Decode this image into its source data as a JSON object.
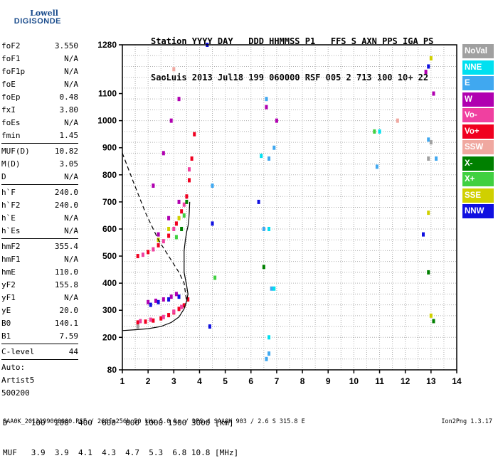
{
  "logo": {
    "line1": "Lowell",
    "line2": "DIGISONDE"
  },
  "header": {
    "line1": "Station YYYY DAY   DDD HHMMSS P1   FFS S AXN PPS IGA PS",
    "line2": "SaoLuis 2013 Jul18 199 060000 RSF 005 2 713 100 10+ 22"
  },
  "params": {
    "group1": [
      {
        "k": "foF2",
        "v": "3.550"
      },
      {
        "k": "foF1",
        "v": "N/A"
      },
      {
        "k": "foF1p",
        "v": "N/A"
      },
      {
        "k": "foE",
        "v": "N/A"
      },
      {
        "k": "foEp",
        "v": "0.48"
      },
      {
        "k": "fxI",
        "v": "3.80"
      },
      {
        "k": "foEs",
        "v": "N/A"
      },
      {
        "k": "fmin",
        "v": "1.45"
      }
    ],
    "group2": [
      {
        "k": "MUF(D)",
        "v": "10.82"
      },
      {
        "k": "M(D)",
        "v": "3.05"
      },
      {
        "k": "D",
        "v": "N/A"
      }
    ],
    "group3": [
      {
        "k": "h`F",
        "v": "240.0"
      },
      {
        "k": "h`F2",
        "v": "240.0"
      },
      {
        "k": "h`E",
        "v": "N/A"
      },
      {
        "k": "h`Es",
        "v": "N/A"
      }
    ],
    "group4": [
      {
        "k": "hmF2",
        "v": "355.4"
      },
      {
        "k": "hmF1",
        "v": "N/A"
      },
      {
        "k": "hmE",
        "v": "110.0"
      },
      {
        "k": "yF2",
        "v": "155.8"
      },
      {
        "k": "yF1",
        "v": "N/A"
      },
      {
        "k": "yE",
        "v": "20.0"
      },
      {
        "k": "B0",
        "v": "140.1"
      },
      {
        "k": "B1",
        "v": "7.59"
      }
    ],
    "clevel": {
      "k": "C-level",
      "v": "44"
    },
    "auto": [
      "Auto:",
      "Artist5",
      "500200"
    ]
  },
  "legend": [
    {
      "label": "NoVal",
      "color": "#a0a0a0"
    },
    {
      "label": "NNE",
      "color": "#00e0f0"
    },
    {
      "label": "E",
      "color": "#40a8f0"
    },
    {
      "label": "W",
      "color": "#b000b0"
    },
    {
      "label": "Vo-",
      "color": "#f040a0"
    },
    {
      "label": "Vo+",
      "color": "#f00020"
    },
    {
      "label": "SSW",
      "color": "#f0a8a0"
    },
    {
      "label": "X-",
      "color": "#008000"
    },
    {
      "label": "X+",
      "color": "#40d040"
    },
    {
      "label": "SSE",
      "color": "#d0d000"
    },
    {
      "label": "NNW",
      "color": "#1010e0"
    }
  ],
  "mufd_table": {
    "d_line": "D     100  200  400  600  800 1000 1500 3000 [km]",
    "muf_line": "MUF   3.9  3.9  4.1  4.3  4.7  5.3  6.8 10.8 [MHz]"
  },
  "footer": "SAA0K_2013199060000.RSF / 260fx256h 50 kHz 5.0 km / DPS-4 SAA0K 903 / 2.6 S 315.8 E",
  "version": "Ion2Png 1.3.17",
  "chart_data": {
    "type": "scatter",
    "x_ticks": [
      "1",
      "2",
      "3",
      "4",
      "5",
      "6",
      "7",
      "8",
      "9",
      "10",
      "11",
      "12",
      "13",
      "14"
    ],
    "y_ticks": [
      "80",
      "200",
      "300",
      "400",
      "500",
      "600",
      "700",
      "800",
      "900",
      "1000",
      "1100",
      "1280"
    ],
    "xlim": [
      1,
      14
    ],
    "ylim": [
      80,
      1280
    ],
    "grid": true,
    "legend_placement": "right",
    "series": [
      {
        "name": "Vo+",
        "color": "#f00020",
        "points": [
          [
            1.6,
            255
          ],
          [
            1.9,
            258
          ],
          [
            2.2,
            262
          ],
          [
            2.5,
            270
          ],
          [
            2.8,
            282
          ],
          [
            3.0,
            292
          ],
          [
            3.2,
            305
          ],
          [
            3.4,
            318
          ],
          [
            3.55,
            340
          ],
          [
            1.6,
            500
          ],
          [
            2.0,
            515
          ],
          [
            2.4,
            540
          ],
          [
            2.8,
            575
          ],
          [
            3.1,
            620
          ],
          [
            3.3,
            665
          ],
          [
            3.5,
            720
          ],
          [
            3.6,
            780
          ],
          [
            3.7,
            860
          ],
          [
            3.8,
            950
          ]
        ]
      },
      {
        "name": "Vo-",
        "color": "#f040a0",
        "points": [
          [
            1.7,
            260
          ],
          [
            2.1,
            265
          ],
          [
            2.6,
            275
          ],
          [
            3.0,
            295
          ],
          [
            3.3,
            312
          ],
          [
            1.8,
            505
          ],
          [
            2.2,
            525
          ],
          [
            2.6,
            555
          ],
          [
            3.0,
            600
          ],
          [
            3.4,
            690
          ],
          [
            3.6,
            820
          ]
        ]
      },
      {
        "name": "W",
        "color": "#b000b0",
        "points": [
          [
            2.0,
            330
          ],
          [
            2.3,
            335
          ],
          [
            2.6,
            340
          ],
          [
            2.9,
            350
          ],
          [
            3.1,
            360
          ],
          [
            2.2,
            760
          ],
          [
            2.6,
            880
          ],
          [
            2.9,
            1000
          ],
          [
            3.2,
            1080
          ],
          [
            2.4,
            580
          ],
          [
            2.8,
            640
          ],
          [
            3.2,
            700
          ],
          [
            6.6,
            1050
          ],
          [
            7.0,
            1000
          ],
          [
            12.8,
            1180
          ],
          [
            13.1,
            1100
          ]
        ]
      },
      {
        "name": "E",
        "color": "#40a8f0",
        "points": [
          [
            6.6,
            120
          ],
          [
            6.7,
            140
          ],
          [
            6.5,
            600
          ],
          [
            6.8,
            380
          ],
          [
            6.7,
            860
          ],
          [
            6.9,
            900
          ],
          [
            6.6,
            1080
          ],
          [
            4.5,
            760
          ],
          [
            10.9,
            830
          ],
          [
            12.9,
            930
          ],
          [
            13.2,
            860
          ]
        ]
      },
      {
        "name": "NNE",
        "color": "#00e0f0",
        "points": [
          [
            6.7,
            200
          ],
          [
            6.7,
            600
          ],
          [
            6.9,
            380
          ],
          [
            6.4,
            870
          ],
          [
            11.0,
            960
          ]
        ]
      },
      {
        "name": "X-",
        "color": "#008000",
        "points": [
          [
            3.3,
            600
          ],
          [
            3.5,
            700
          ],
          [
            6.5,
            460
          ],
          [
            13.1,
            260
          ],
          [
            12.9,
            440
          ]
        ]
      },
      {
        "name": "X+",
        "color": "#40d040",
        "points": [
          [
            3.1,
            570
          ],
          [
            3.4,
            650
          ],
          [
            4.6,
            420
          ],
          [
            10.8,
            960
          ]
        ]
      },
      {
        "name": "SSE",
        "color": "#d0d000",
        "points": [
          [
            2.4,
            560
          ],
          [
            2.8,
            600
          ],
          [
            3.2,
            640
          ],
          [
            13.0,
            280
          ],
          [
            12.9,
            660
          ],
          [
            13.0,
            1230
          ]
        ]
      },
      {
        "name": "NNW",
        "color": "#1010e0",
        "points": [
          [
            2.1,
            320
          ],
          [
            2.4,
            330
          ],
          [
            2.8,
            340
          ],
          [
            3.2,
            350
          ],
          [
            4.4,
            240
          ],
          [
            4.5,
            620
          ],
          [
            4.3,
            1280
          ],
          [
            6.3,
            700
          ],
          [
            12.7,
            580
          ],
          [
            12.9,
            1200
          ]
        ]
      },
      {
        "name": "SSW",
        "color": "#f0a8a0",
        "points": [
          [
            3.0,
            1190
          ],
          [
            11.7,
            1000
          ]
        ]
      },
      {
        "name": "NoVal",
        "color": "#a0a0a0",
        "points": [
          [
            1.6,
            240
          ],
          [
            12.9,
            860
          ],
          [
            13.0,
            920
          ]
        ]
      }
    ],
    "curves": [
      {
        "name": "profile-solid",
        "style": "solid",
        "points": [
          [
            1.0,
            225
          ],
          [
            1.5,
            228
          ],
          [
            2.0,
            232
          ],
          [
            2.5,
            240
          ],
          [
            2.9,
            255
          ],
          [
            3.2,
            275
          ],
          [
            3.4,
            305
          ],
          [
            3.5,
            335
          ],
          [
            3.55,
            360
          ],
          [
            3.5,
            390
          ],
          [
            3.4,
            440
          ],
          [
            3.4,
            520
          ],
          [
            3.45,
            560
          ],
          [
            3.5,
            590
          ],
          [
            3.55,
            610
          ],
          [
            3.58,
            630
          ],
          [
            3.6,
            660
          ],
          [
            3.62,
            700
          ]
        ]
      },
      {
        "name": "profile-dashed",
        "style": "dashed",
        "points": [
          [
            1.0,
            880
          ],
          [
            1.4,
            780
          ],
          [
            1.9,
            660
          ],
          [
            2.4,
            560
          ],
          [
            2.8,
            500
          ],
          [
            3.2,
            440
          ],
          [
            3.4,
            400
          ],
          [
            3.5,
            330
          ]
        ]
      }
    ]
  }
}
